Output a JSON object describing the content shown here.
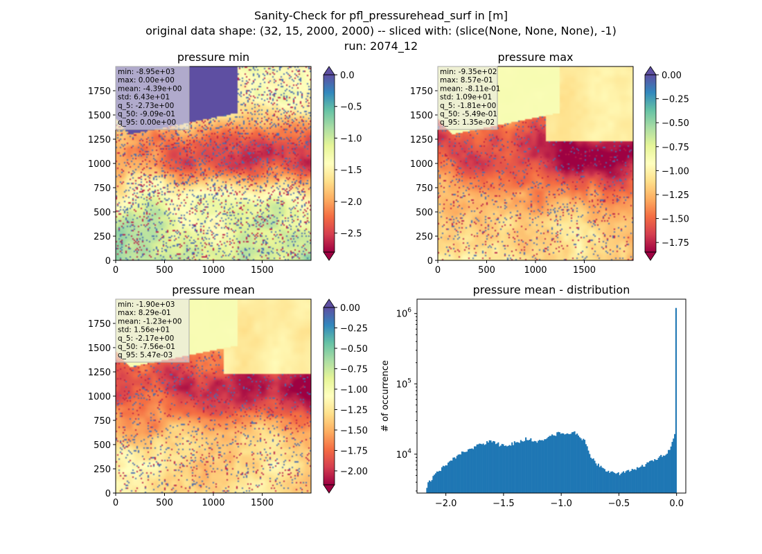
{
  "figure": {
    "title_lines": [
      "Sanity-Check for pfl_pressurehead_surf in [m]",
      "original data shape: (32, 15, 2000, 2000) -- sliced with: (slice(None, None, None), -1)",
      "run: 2074_12"
    ]
  },
  "chart_data": [
    {
      "type": "heatmap",
      "title": "pressure min",
      "xlim": [
        0,
        2000
      ],
      "ylim": [
        0,
        2000
      ],
      "xticks": [
        "0",
        "500",
        "1000",
        "1500"
      ],
      "yticks": [
        "0",
        "250",
        "500",
        "750",
        "1000",
        "1250",
        "1500",
        "1750"
      ],
      "colormap": "Spectral",
      "colorbar": {
        "range": [
          -2.8,
          0.0
        ],
        "ticks": [
          "0.0",
          "−0.5",
          "−1.0",
          "−1.5",
          "−2.0",
          "−2.5"
        ],
        "tick_values": [
          0.0,
          -0.5,
          -1.0,
          -1.5,
          -2.0,
          -2.5
        ],
        "extend": "both",
        "extend_top_color": "#5e4fa2",
        "extend_bottom_color": "#9e0142"
      },
      "stats": [
        "min: -8.95e+03",
        "max: 0.00e+00",
        "mean: -4.39e+00",
        "std: 6.43e+01",
        "q_5: -2.73e+00",
        "q_50: -9.09e-01",
        "q_95: 0.00e+00"
      ]
    },
    {
      "type": "heatmap",
      "title": "pressure max",
      "xlim": [
        0,
        2000
      ],
      "ylim": [
        0,
        2000
      ],
      "xticks": [
        "0",
        "500",
        "1000",
        "1500"
      ],
      "yticks": [
        "0",
        "250",
        "500",
        "750",
        "1000",
        "1250",
        "1500",
        "1750"
      ],
      "colormap": "Spectral",
      "colorbar": {
        "range": [
          -1.85,
          0.0
        ],
        "ticks": [
          "0.00",
          "−0.25",
          "−0.50",
          "−0.75",
          "−1.00",
          "−1.25",
          "−1.50",
          "−1.75"
        ],
        "tick_values": [
          0.0,
          -0.25,
          -0.5,
          -0.75,
          -1.0,
          -1.25,
          -1.5,
          -1.75
        ],
        "extend": "both",
        "extend_top_color": "#5e4fa2",
        "extend_bottom_color": "#9e0142"
      },
      "stats": [
        "min: -9.35e+02",
        "max: 8.57e-01",
        "mean: -8.11e-01",
        "std: 1.09e+01",
        "q_5: -1.81e+00",
        "q_50: -5.49e-01",
        "q_95: 1.35e-02"
      ]
    },
    {
      "type": "heatmap",
      "title": "pressure mean",
      "xlim": [
        0,
        2000
      ],
      "ylim": [
        0,
        2000
      ],
      "xticks": [
        "0",
        "500",
        "1000",
        "1500"
      ],
      "yticks": [
        "0",
        "250",
        "500",
        "750",
        "1000",
        "1250",
        "1500",
        "1750"
      ],
      "colormap": "Spectral",
      "colorbar": {
        "range": [
          -2.17,
          0.0
        ],
        "ticks": [
          "0.00",
          "−0.25",
          "−0.50",
          "−0.75",
          "−1.00",
          "−1.25",
          "−1.50",
          "−1.75",
          "−2.00"
        ],
        "tick_values": [
          0.0,
          -0.25,
          -0.5,
          -0.75,
          -1.0,
          -1.25,
          -1.5,
          -1.75,
          -2.0
        ],
        "extend": "both",
        "extend_top_color": "#5e4fa2",
        "extend_bottom_color": "#9e0142"
      },
      "stats": [
        "min: -1.90e+03",
        "max: 8.29e-01",
        "mean: -1.23e+00",
        "std: 1.56e+01",
        "q_5: -2.17e+00",
        "q_50: -7.56e-01",
        "q_95: 5.47e-03"
      ]
    },
    {
      "type": "bar",
      "title": "pressure mean - distribution",
      "ylabel": "# of occurrence",
      "yscale": "log",
      "color": "#1f77b4",
      "xlim": [
        -2.25,
        0.08
      ],
      "ylim": [
        2800,
        1600000
      ],
      "xticks": [
        "−2.0",
        "−1.5",
        "−1.0",
        "−0.5",
        "0.0"
      ],
      "xtick_values": [
        -2.0,
        -1.5,
        -1.0,
        -0.5,
        0.0
      ],
      "ytick_labels": [
        [
          "10",
          "4"
        ],
        [
          "10",
          "5"
        ],
        [
          "10",
          "6"
        ]
      ],
      "ytick_values": [
        10000,
        100000,
        1000000
      ],
      "x_range": [
        -2.17,
        0.0
      ],
      "profile_x": [
        -2.17,
        -2.15,
        -2.1,
        -2.0,
        -1.9,
        -1.8,
        -1.7,
        -1.62,
        -1.5,
        -1.4,
        -1.3,
        -1.2,
        -1.1,
        -1.0,
        -0.95,
        -0.9,
        -0.85,
        -0.8,
        -0.75,
        -0.7,
        -0.6,
        -0.5,
        -0.4,
        -0.3,
        -0.2,
        -0.1,
        -0.05,
        -0.02,
        -0.01,
        0.0
      ],
      "profile_y": [
        3200,
        4000,
        5000,
        7000,
        9500,
        12000,
        13500,
        15500,
        13000,
        14500,
        16500,
        15000,
        18000,
        20500,
        20000,
        20500,
        19000,
        15500,
        9500,
        7500,
        5800,
        5200,
        5800,
        6800,
        8000,
        10000,
        12000,
        18000,
        25000,
        1200000
      ]
    }
  ]
}
